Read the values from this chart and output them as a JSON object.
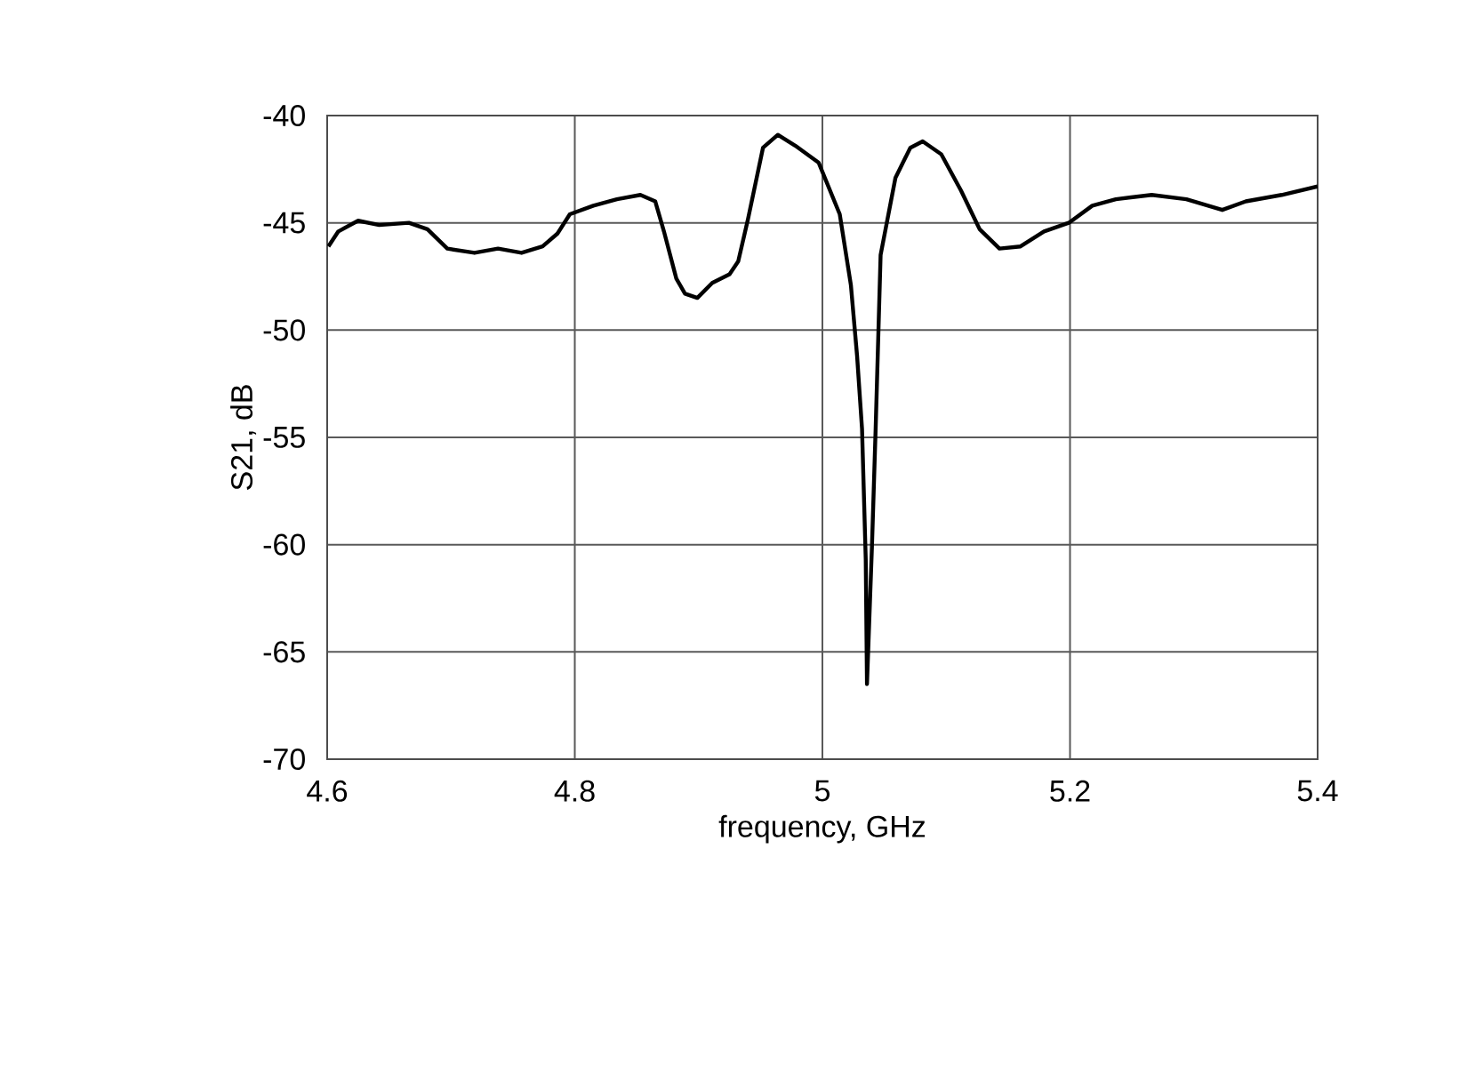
{
  "chart_data": {
    "type": "line",
    "xlabel": "frequency,  GHz",
    "ylabel": "S21, dB",
    "xlim": [
      4.6,
      5.4
    ],
    "xticks": [
      4.6,
      4.8,
      5,
      5.2,
      5.4
    ],
    "ylim": [
      -70,
      -40
    ],
    "yticks": [
      -70,
      -65,
      -60,
      -55,
      -50,
      -45,
      -40
    ],
    "grid": true,
    "marker": "none",
    "line_style": "solid",
    "series": [
      {
        "color": "#000000",
        "x": [
          4.601,
          4.609,
          4.625,
          4.642,
          4.666,
          4.681,
          4.697,
          4.719,
          4.738,
          4.757,
          4.774,
          4.786,
          4.796,
          4.815,
          4.834,
          4.853,
          4.865,
          4.872,
          4.882,
          4.889,
          4.899,
          4.911,
          4.925,
          4.932,
          4.94,
          4.952,
          4.964,
          4.978,
          4.997,
          5.014,
          5.023,
          5.028,
          5.032,
          5.035,
          5.036,
          5.04,
          5.043,
          5.047,
          5.059,
          5.071,
          5.081,
          5.096,
          5.112,
          5.127,
          5.143,
          5.16,
          5.179,
          5.199,
          5.218,
          5.237,
          5.266,
          5.294,
          5.323,
          5.342,
          5.371,
          5.4
        ],
        "values": [
          -46.1,
          -45.4,
          -44.9,
          -45.1,
          -45.0,
          -45.3,
          -46.2,
          -46.4,
          -46.2,
          -46.4,
          -46.1,
          -45.5,
          -44.6,
          -44.2,
          -43.9,
          -43.7,
          -44.0,
          -45.4,
          -47.6,
          -48.3,
          -48.5,
          -47.8,
          -47.4,
          -46.8,
          -44.8,
          -41.5,
          -40.9,
          -41.4,
          -42.2,
          -44.6,
          -47.9,
          -51.2,
          -54.6,
          -60.7,
          -66.5,
          -60.1,
          -54.6,
          -46.5,
          -42.9,
          -41.5,
          -41.2,
          -41.8,
          -43.5,
          -45.3,
          -46.2,
          -46.1,
          -45.4,
          -45.0,
          -44.2,
          -43.9,
          -43.7,
          -43.9,
          -44.4,
          -44.0,
          -43.7,
          -43.3
        ]
      }
    ]
  }
}
